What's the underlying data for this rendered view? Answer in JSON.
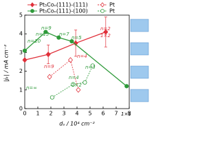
{
  "chart_data": {
    "type": "line",
    "x_label": "dₛ / 10⁴ cm⁻²",
    "y_label": "|jₖ| / mA cm⁻²",
    "xlim": [
      0,
      8
    ],
    "xticks": [
      0,
      1,
      2,
      3,
      4,
      5,
      6,
      7,
      8
    ],
    "ylim": [
      0,
      5
    ],
    "yticks": [
      0,
      1,
      2,
      3,
      4,
      5
    ],
    "series": [
      {
        "name": "Pt₅Coₙ(111)-(111)",
        "color": "#e0303a",
        "marker": "diamond",
        "filled": true,
        "dashed": false,
        "x": [
          0,
          1.8,
          3.9,
          6.2
        ],
        "values": [
          2.6,
          2.9,
          3.5,
          4.1
        ],
        "errors": [
          0,
          0.5,
          0.7,
          0.8
        ]
      },
      {
        "name": "Pt₅Coₙ(111)-(100)",
        "color": "#2e9a3a",
        "marker": "circle",
        "filled": true,
        "dashed": false,
        "x": [
          0,
          1.6,
          2.6,
          3.6,
          7.8
        ],
        "values": [
          3.1,
          4.1,
          3.8,
          3.6,
          1.2
        ]
      },
      {
        "name": "Pt",
        "color": "#e0303a",
        "marker": "diamond",
        "filled": false,
        "dashed": true,
        "x": [
          1.9,
          3.5,
          4.1
        ],
        "values": [
          1.7,
          2.6,
          1.0
        ]
      },
      {
        "name": "Pt",
        "color": "#2e9a3a",
        "marker": "circle",
        "filled": false,
        "dashed": true,
        "x": [
          2.1,
          3.7,
          4.6,
          5.2
        ],
        "values": [
          0.6,
          1.3,
          1.4,
          2.3
        ]
      }
    ],
    "annotations": [
      "n=∞",
      "n=20",
      "n=15",
      "n=9",
      "n=9",
      "n=7",
      "n=5",
      "n=4",
      "n=4",
      "n=3",
      "n=2",
      "1×2",
      "1×2",
      "1×1"
    ]
  }
}
